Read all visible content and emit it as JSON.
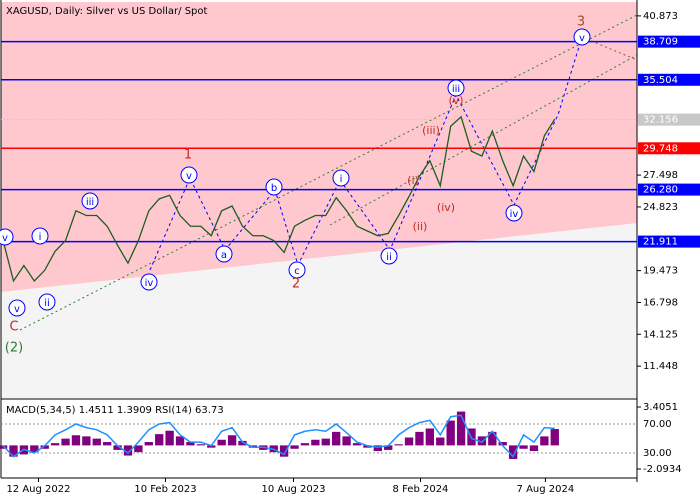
{
  "chart_data": [
    {
      "type": "line",
      "title": "XAGUSD, Daily:  Silver vs US Dollar/ Spot",
      "color": "#1b5e20",
      "xlim": [
        -0.2,
        60.9
      ],
      "ylim": [
        8.77,
        42.04
      ],
      "xticks": [
        {
          "value": 3.4,
          "label": "12 Aug 2022"
        },
        {
          "value": 15.6,
          "label": "10 Feb 2023"
        },
        {
          "value": 27.9,
          "label": "10 Aug 2023"
        },
        {
          "value": 40.1,
          "label": "8 Feb 2024"
        },
        {
          "value": 52.1,
          "label": "7 Aug 2024"
        }
      ],
      "yticks": [
        40.873,
        27.498,
        24.823,
        19.473,
        16.798,
        14.125,
        11.448
      ],
      "levels": [
        {
          "value": 38.709,
          "color": "#0000ff"
        },
        {
          "value": 35.504,
          "color": "#0000ff"
        },
        {
          "value": 29.748,
          "color": "#ff0000"
        },
        {
          "value": 26.28,
          "label": "26.280",
          "color": "#0000ff"
        },
        {
          "value": 21.911,
          "color": "#0000ff"
        }
      ],
      "last_price": 32.156,
      "values": [
        22.0,
        18.6,
        19.9,
        18.6,
        19.5,
        21.1,
        22.0,
        24.5,
        24.1,
        24.1,
        23.2,
        21.6,
        20.1,
        22.0,
        24.5,
        25.5,
        25.8,
        24.1,
        23.2,
        23.2,
        22.4,
        24.5,
        24.9,
        23.2,
        22.4,
        22.4,
        22.0,
        21.0,
        23.2,
        23.7,
        24.1,
        24.1,
        25.6,
        24.5,
        23.2,
        22.8,
        22.4,
        22.6,
        24.1,
        25.7,
        27.4,
        28.7,
        26.6,
        31.6,
        32.4,
        29.5,
        29.1,
        31.2,
        28.7,
        26.6,
        29.1,
        27.8,
        30.8,
        32.2
      ],
      "annotations": [
        "v",
        "i",
        "ii",
        "v",
        "iii",
        "iv",
        "v",
        "a",
        "b",
        "c",
        "i",
        "ii",
        "iii",
        "iv",
        "v",
        "1",
        "2",
        "3",
        "C",
        "(2)",
        "(i)",
        "(ii)",
        "(iii)",
        "(iv)",
        "(v)"
      ]
    },
    {
      "type": "bar",
      "title": "MACD(5,34,5) 1.4511 1.3909 RSI(14) 63.73",
      "color": "#800080",
      "ylim": [
        -2.891,
        4.026
      ],
      "yticks": [
        3.4051,
        -2.0934
      ],
      "y2lim": [
        -4.5,
        103.1
      ],
      "y2ticks": [
        {
          "value": 70,
          "label": "70.00"
        },
        {
          "value": 30,
          "label": "30.00"
        }
      ],
      "values": [
        -0.3,
        -1.0,
        -0.8,
        -0.6,
        -0.3,
        0.2,
        0.6,
        0.9,
        0.8,
        0.6,
        0.3,
        -0.4,
        -0.9,
        -0.6,
        0.3,
        1.0,
        1.3,
        0.8,
        0.3,
        0.1,
        -0.2,
        0.5,
        0.9,
        0.4,
        -0.2,
        -0.4,
        -0.6,
        -1.0,
        -0.3,
        0.2,
        0.5,
        0.6,
        1.2,
        0.8,
        0.2,
        -0.2,
        -0.5,
        -0.4,
        0.1,
        0.7,
        1.2,
        1.5,
        0.7,
        2.2,
        3.0,
        1.5,
        0.8,
        1.2,
        0.3,
        -1.2,
        -0.3,
        -0.5,
        0.8,
        1.45
      ],
      "series": [
        {
          "color": "#1e90ff",
          "axis": "y2",
          "values": [
            40,
            25,
            35,
            30,
            40,
            55,
            62,
            70,
            65,
            62,
            55,
            40,
            30,
            45,
            62,
            70,
            72,
            55,
            45,
            45,
            40,
            60,
            65,
            45,
            38,
            38,
            35,
            28,
            55,
            60,
            62,
            60,
            70,
            58,
            45,
            40,
            38,
            40,
            55,
            65,
            72,
            75,
            55,
            80,
            82,
            50,
            45,
            60,
            40,
            25,
            55,
            45,
            65,
            64
          ]
        }
      ]
    }
  ]
}
